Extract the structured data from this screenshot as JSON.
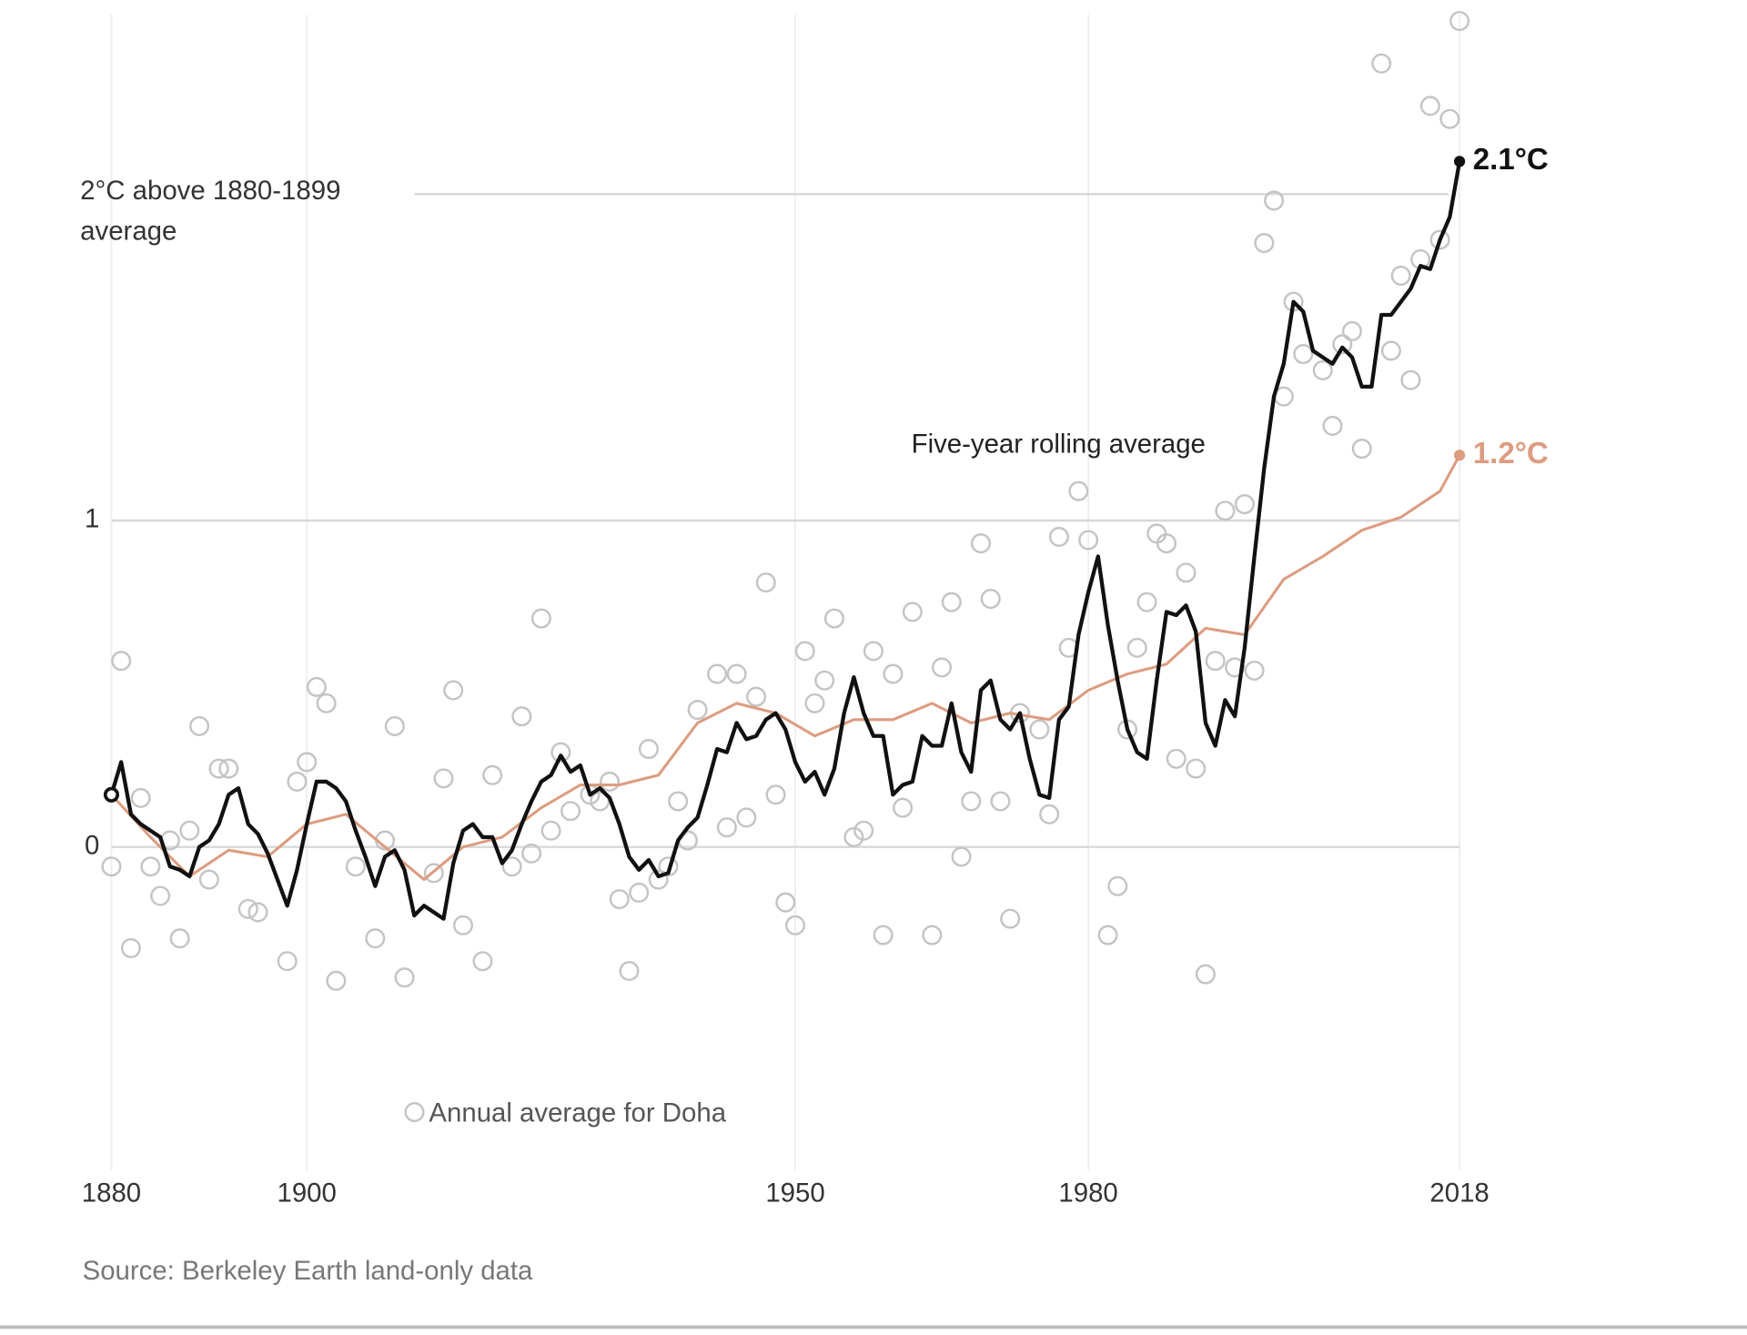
{
  "chart_data": {
    "type": "line",
    "xlim": [
      1880,
      2018
    ],
    "xticks": [
      1880,
      1900,
      1950,
      1980,
      2018
    ],
    "ylim": [
      -1,
      2.55
    ],
    "yticks": [
      0,
      1,
      {
        "value": 2,
        "label": "2°C above 1880-1899 average"
      }
    ],
    "grid": true,
    "source": "Source: Berkeley Earth land-only data",
    "series": [
      {
        "name": "Annual average for Doha",
        "type": "scatter",
        "color": "#c4c4c4",
        "x": [
          1880,
          1881,
          1882,
          1883,
          1884,
          1885,
          1886,
          1887,
          1888,
          1889,
          1890,
          1891,
          1892,
          1894,
          1895,
          1898,
          1899,
          1900,
          1901,
          1902,
          1903,
          1905,
          1907,
          1908,
          1909,
          1910,
          1913,
          1914,
          1915,
          1916,
          1918,
          1919,
          1921,
          1922,
          1923,
          1924,
          1925,
          1926,
          1927,
          1929,
          1930,
          1931,
          1932,
          1933,
          1934,
          1935,
          1936,
          1937,
          1938,
          1939,
          1940,
          1942,
          1943,
          1944,
          1945,
          1946,
          1947,
          1948,
          1949,
          1950,
          1951,
          1952,
          1953,
          1954,
          1956,
          1957,
          1958,
          1959,
          1960,
          1961,
          1962,
          1964,
          1965,
          1966,
          1967,
          1968,
          1969,
          1970,
          1971,
          1972,
          1973,
          1975,
          1976,
          1977,
          1978,
          1979,
          1980,
          1982,
          1983,
          1984,
          1985,
          1986,
          1987,
          1988,
          1989,
          1990,
          1991,
          1992,
          1993,
          1994,
          1995,
          1996,
          1997,
          1998,
          1999,
          2000,
          2001,
          2002,
          2004,
          2005,
          2006,
          2007,
          2008,
          2010,
          2011,
          2012,
          2013,
          2014,
          2015,
          2016,
          2017,
          2018
        ],
        "values": [
          -0.06,
          0.57,
          -0.31,
          0.15,
          -0.06,
          -0.15,
          0.02,
          -0.28,
          0.05,
          0.37,
          -0.1,
          0.24,
          0.24,
          -0.19,
          -0.2,
          -0.35,
          0.2,
          0.26,
          0.49,
          0.44,
          -0.41,
          -0.06,
          -0.28,
          0.02,
          0.37,
          -0.4,
          -0.08,
          0.21,
          0.48,
          -0.24,
          -0.35,
          0.22,
          -0.06,
          0.4,
          -0.02,
          0.7,
          0.05,
          0.29,
          0.11,
          0.16,
          0.14,
          0.2,
          -0.16,
          -0.38,
          -0.14,
          0.3,
          -0.1,
          -0.06,
          0.14,
          0.02,
          0.42,
          0.53,
          0.06,
          0.53,
          0.09,
          0.46,
          0.81,
          0.16,
          -0.17,
          -0.24,
          0.6,
          0.44,
          0.51,
          0.7,
          0.03,
          0.05,
          0.6,
          -0.27,
          0.53,
          0.12,
          0.72,
          -0.27,
          0.55,
          0.75,
          -0.03,
          0.14,
          0.93,
          0.76,
          0.14,
          -0.22,
          0.41,
          0.36,
          0.1,
          0.95,
          0.61,
          1.09,
          0.94,
          -0.27,
          -0.12,
          0.36,
          0.61,
          0.75,
          0.96,
          0.93,
          0.27,
          0.84,
          0.24,
          -0.39,
          0.57,
          1.03,
          0.55,
          1.05,
          0.54,
          1.85,
          1.98,
          1.38,
          1.67,
          1.51,
          1.46,
          1.29,
          1.54,
          1.58,
          1.22,
          2.4,
          1.52,
          1.75,
          1.43,
          1.8,
          2.27,
          1.86,
          2.23,
          2.53
        ]
      },
      {
        "name": "Five-year rolling average",
        "color": "#111111",
        "x": [
          1880,
          1881,
          1882,
          1883,
          1884,
          1885,
          1886,
          1887,
          1888,
          1889,
          1890,
          1891,
          1892,
          1893,
          1894,
          1895,
          1896,
          1897,
          1898,
          1899,
          1900,
          1901,
          1902,
          1903,
          1904,
          1905,
          1906,
          1907,
          1908,
          1909,
          1910,
          1911,
          1912,
          1913,
          1914,
          1915,
          1916,
          1917,
          1918,
          1919,
          1920,
          1921,
          1922,
          1923,
          1924,
          1925,
          1926,
          1927,
          1928,
          1929,
          1930,
          1931,
          1932,
          1933,
          1934,
          1935,
          1936,
          1937,
          1938,
          1939,
          1940,
          1941,
          1942,
          1943,
          1944,
          1945,
          1946,
          1947,
          1948,
          1949,
          1950,
          1951,
          1952,
          1953,
          1954,
          1955,
          1956,
          1957,
          1958,
          1959,
          1960,
          1961,
          1962,
          1963,
          1964,
          1965,
          1966,
          1967,
          1968,
          1969,
          1970,
          1971,
          1972,
          1973,
          1974,
          1975,
          1976,
          1977,
          1978,
          1979,
          1980,
          1981,
          1982,
          1983,
          1984,
          1985,
          1986,
          1987,
          1988,
          1989,
          1990,
          1991,
          1992,
          1993,
          1994,
          1995,
          1996,
          1997,
          1998,
          1999,
          2000,
          2001,
          2002,
          2003,
          2004,
          2005,
          2006,
          2007,
          2008,
          2009,
          2010,
          2011,
          2012,
          2013,
          2014,
          2015,
          2016,
          2017,
          2018
        ],
        "values": [
          0.16,
          0.26,
          0.1,
          0.07,
          0.05,
          0.03,
          -0.06,
          -0.07,
          -0.09,
          0,
          0.02,
          0.07,
          0.16,
          0.18,
          0.07,
          0.04,
          -0.02,
          -0.1,
          -0.18,
          -0.07,
          0.07,
          0.2,
          0.2,
          0.18,
          0.14,
          0.05,
          -0.03,
          -0.12,
          -0.03,
          -0.01,
          -0.07,
          -0.21,
          -0.18,
          -0.2,
          -0.22,
          -0.05,
          0.05,
          0.07,
          0.03,
          0.03,
          -0.05,
          -0.01,
          0.07,
          0.14,
          0.2,
          0.22,
          0.28,
          0.23,
          0.25,
          0.16,
          0.18,
          0.15,
          0.07,
          -0.03,
          -0.07,
          -0.04,
          -0.09,
          -0.08,
          0.02,
          0.06,
          0.09,
          0.19,
          0.3,
          0.29,
          0.38,
          0.33,
          0.34,
          0.39,
          0.41,
          0.36,
          0.26,
          0.2,
          0.23,
          0.16,
          0.24,
          0.41,
          0.52,
          0.41,
          0.34,
          0.34,
          0.16,
          0.19,
          0.2,
          0.34,
          0.31,
          0.31,
          0.44,
          0.29,
          0.23,
          0.48,
          0.51,
          0.39,
          0.36,
          0.41,
          0.27,
          0.16,
          0.15,
          0.39,
          0.43,
          0.65,
          0.78,
          0.89,
          0.68,
          0.51,
          0.36,
          0.29,
          0.27,
          0.51,
          0.72,
          0.71,
          0.74,
          0.66,
          0.38,
          0.31,
          0.45,
          0.4,
          0.61,
          0.89,
          1.16,
          1.38,
          1.48,
          1.67,
          1.64,
          1.52,
          1.5,
          1.48,
          1.53,
          1.5,
          1.41,
          1.41,
          1.63,
          1.63,
          1.67,
          1.71,
          1.78,
          1.77,
          1.86,
          1.93,
          2.1
        ],
        "value_labels": [
          null,
          null,
          null,
          null,
          null,
          null,
          null,
          null,
          null,
          null,
          null,
          null,
          null,
          null,
          null,
          null,
          null,
          null,
          null,
          null,
          null,
          null,
          null,
          null,
          null,
          null,
          null,
          null,
          null,
          null,
          null,
          null,
          null,
          null,
          null,
          null,
          null,
          null,
          null,
          null,
          null,
          null,
          null,
          null,
          null,
          null,
          null,
          null,
          null,
          null,
          null,
          null,
          null,
          null,
          null,
          null,
          null,
          null,
          null,
          null,
          null,
          null,
          null,
          null,
          null,
          null,
          null,
          null,
          null,
          null,
          null,
          null,
          null,
          null,
          null,
          null,
          null,
          null,
          null,
          null,
          null,
          null,
          null,
          null,
          null,
          null,
          null,
          null,
          null,
          null,
          null,
          null,
          null,
          null,
          null,
          null,
          null,
          null,
          null,
          null,
          null,
          null,
          null,
          null,
          null,
          null,
          null,
          null,
          null,
          null,
          null,
          null,
          null,
          null,
          null,
          null,
          null,
          null,
          null,
          null,
          null,
          null,
          null,
          null,
          null,
          null,
          null,
          null,
          null,
          null,
          null,
          null,
          null,
          null,
          null,
          null,
          null,
          null,
          "2.1°C"
        ]
      },
      {
        "color": "#dc9c80",
        "x": [
          1880,
          1884,
          1888,
          1892,
          1896,
          1900,
          1904,
          1908,
          1912,
          1916,
          1920,
          1924,
          1928,
          1932,
          1936,
          1940,
          1944,
          1948,
          1952,
          1956,
          1960,
          1964,
          1968,
          1972,
          1976,
          1980,
          1984,
          1988,
          1992,
          1996,
          2000,
          2004,
          2008,
          2012,
          2016,
          2018
        ],
        "values": [
          0.16,
          0.03,
          -0.09,
          -0.01,
          -0.03,
          0.07,
          0.1,
          0.0,
          -0.1,
          0.0,
          0.03,
          0.12,
          0.19,
          0.19,
          0.22,
          0.38,
          0.44,
          0.41,
          0.34,
          0.39,
          0.39,
          0.44,
          0.38,
          0.41,
          0.39,
          0.48,
          0.53,
          0.56,
          0.67,
          0.65,
          0.82,
          0.89,
          0.97,
          1.01,
          1.09,
          1.2
        ],
        "value_labels": [
          null,
          null,
          null,
          null,
          null,
          null,
          null,
          null,
          null,
          null,
          null,
          null,
          null,
          null,
          null,
          null,
          null,
          null,
          null,
          null,
          null,
          null,
          null,
          null,
          null,
          null,
          null,
          null,
          null,
          null,
          null,
          null,
          null,
          null,
          null,
          "1.2°C"
        ]
      }
    ]
  }
}
